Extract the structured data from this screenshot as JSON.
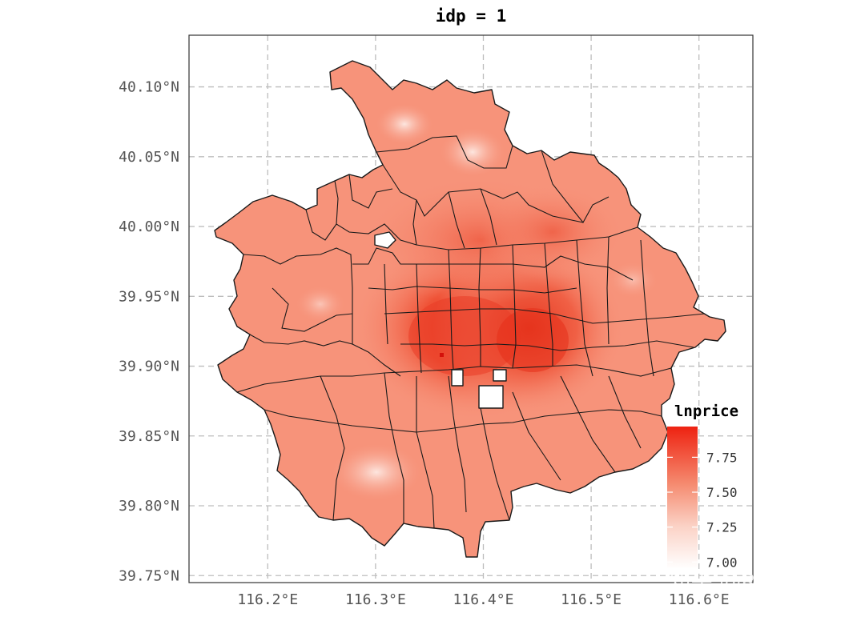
{
  "title": "idp = 1",
  "x_axis": {
    "tick_labels": [
      "116.2°E",
      "116.3°E",
      "116.4°E",
      "116.5°E",
      "116.6°E"
    ],
    "values": [
      116.2,
      116.3,
      116.4,
      116.5,
      116.6
    ],
    "range": [
      116.127,
      116.65
    ]
  },
  "y_axis": {
    "tick_labels": [
      "40.10°N",
      "40.05°N",
      "40.00°N",
      "39.95°N",
      "39.90°N",
      "39.85°N",
      "39.80°N",
      "39.75°N"
    ],
    "values": [
      40.1,
      40.05,
      40.0,
      39.95,
      39.9,
      39.85,
      39.8,
      39.75
    ],
    "range": [
      39.745,
      40.137
    ]
  },
  "legend": {
    "title": "lnprice",
    "labels": [
      "7.75",
      "7.50",
      "7.25",
      "7.00"
    ],
    "values": [
      7.75,
      7.5,
      7.25,
      7.0
    ],
    "range": [
      6.95,
      7.97
    ],
    "placement": "bottom-right",
    "color_low": "#ffffff",
    "color_high": "#ee2211"
  },
  "colors": {
    "base_fill": "#f7937a",
    "mid_fill": "#f4684e",
    "hot_fill": "#ea3d26",
    "hotspot": "#e41a10",
    "grid": "#bdbdbd",
    "border": "#1a1a1a"
  },
  "watermark": "知乎 @R语言学堂"
}
